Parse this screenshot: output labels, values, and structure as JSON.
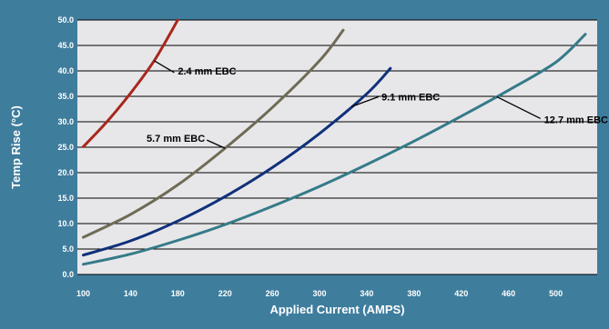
{
  "chart_data": {
    "type": "line",
    "title": "",
    "xlabel": "Applied Current (AMPS)",
    "ylabel": "Temp Rise (°C)",
    "xlim": [
      95,
      535
    ],
    "ylim": [
      0,
      50
    ],
    "x_ticks": [
      "100",
      "140",
      "180",
      "220",
      "260",
      "300",
      "340",
      "380",
      "420",
      "460",
      "500"
    ],
    "y_ticks": [
      "0.0",
      "5.0",
      "10.0",
      "15.0",
      "20.0",
      "25.0",
      "30.0",
      "35.0",
      "40.0",
      "45.0",
      "50.0"
    ],
    "grid": "horizontal",
    "colors": {
      "background": "#3f7d9d",
      "plot_area": "#e7e7ea",
      "gridline": "#000000"
    },
    "series": [
      {
        "name": "2.4 mm EBC",
        "color": "#a8281c",
        "label_at": [
          160,
          41
        ],
        "points": [
          [
            100,
            25.1
          ],
          [
            120,
            30.0
          ],
          [
            140,
            35.6
          ],
          [
            160,
            42.0
          ],
          [
            180,
            50.0
          ]
        ]
      },
      {
        "name": "5.7 mm EBC",
        "color": "#6f6b55",
        "label_at": [
          220,
          23.6
        ],
        "points": [
          [
            100,
            7.3
          ],
          [
            140,
            11.8
          ],
          [
            180,
            17.6
          ],
          [
            220,
            24.8
          ],
          [
            260,
            32.8
          ],
          [
            300,
            42.0
          ],
          [
            320,
            48.0
          ]
        ]
      },
      {
        "name": "9.1 mm EBC",
        "color": "#10307a",
        "label_at": [
          327,
          33.2
        ],
        "points": [
          [
            100,
            3.8
          ],
          [
            140,
            6.6
          ],
          [
            180,
            10.5
          ],
          [
            220,
            15.3
          ],
          [
            260,
            21.0
          ],
          [
            300,
            27.7
          ],
          [
            340,
            35.5
          ],
          [
            360,
            40.5
          ]
        ]
      },
      {
        "name": "12.7 mm EBC",
        "color": "#357b88",
        "label_at": [
          450,
          26.6
        ],
        "points": [
          [
            100,
            2.0
          ],
          [
            140,
            4.0
          ],
          [
            180,
            6.7
          ],
          [
            220,
            9.8
          ],
          [
            260,
            13.4
          ],
          [
            300,
            17.3
          ],
          [
            340,
            21.6
          ],
          [
            380,
            26.2
          ],
          [
            420,
            31.1
          ],
          [
            460,
            36.2
          ],
          [
            500,
            41.7
          ],
          [
            525,
            47.2
          ]
        ]
      }
    ]
  }
}
